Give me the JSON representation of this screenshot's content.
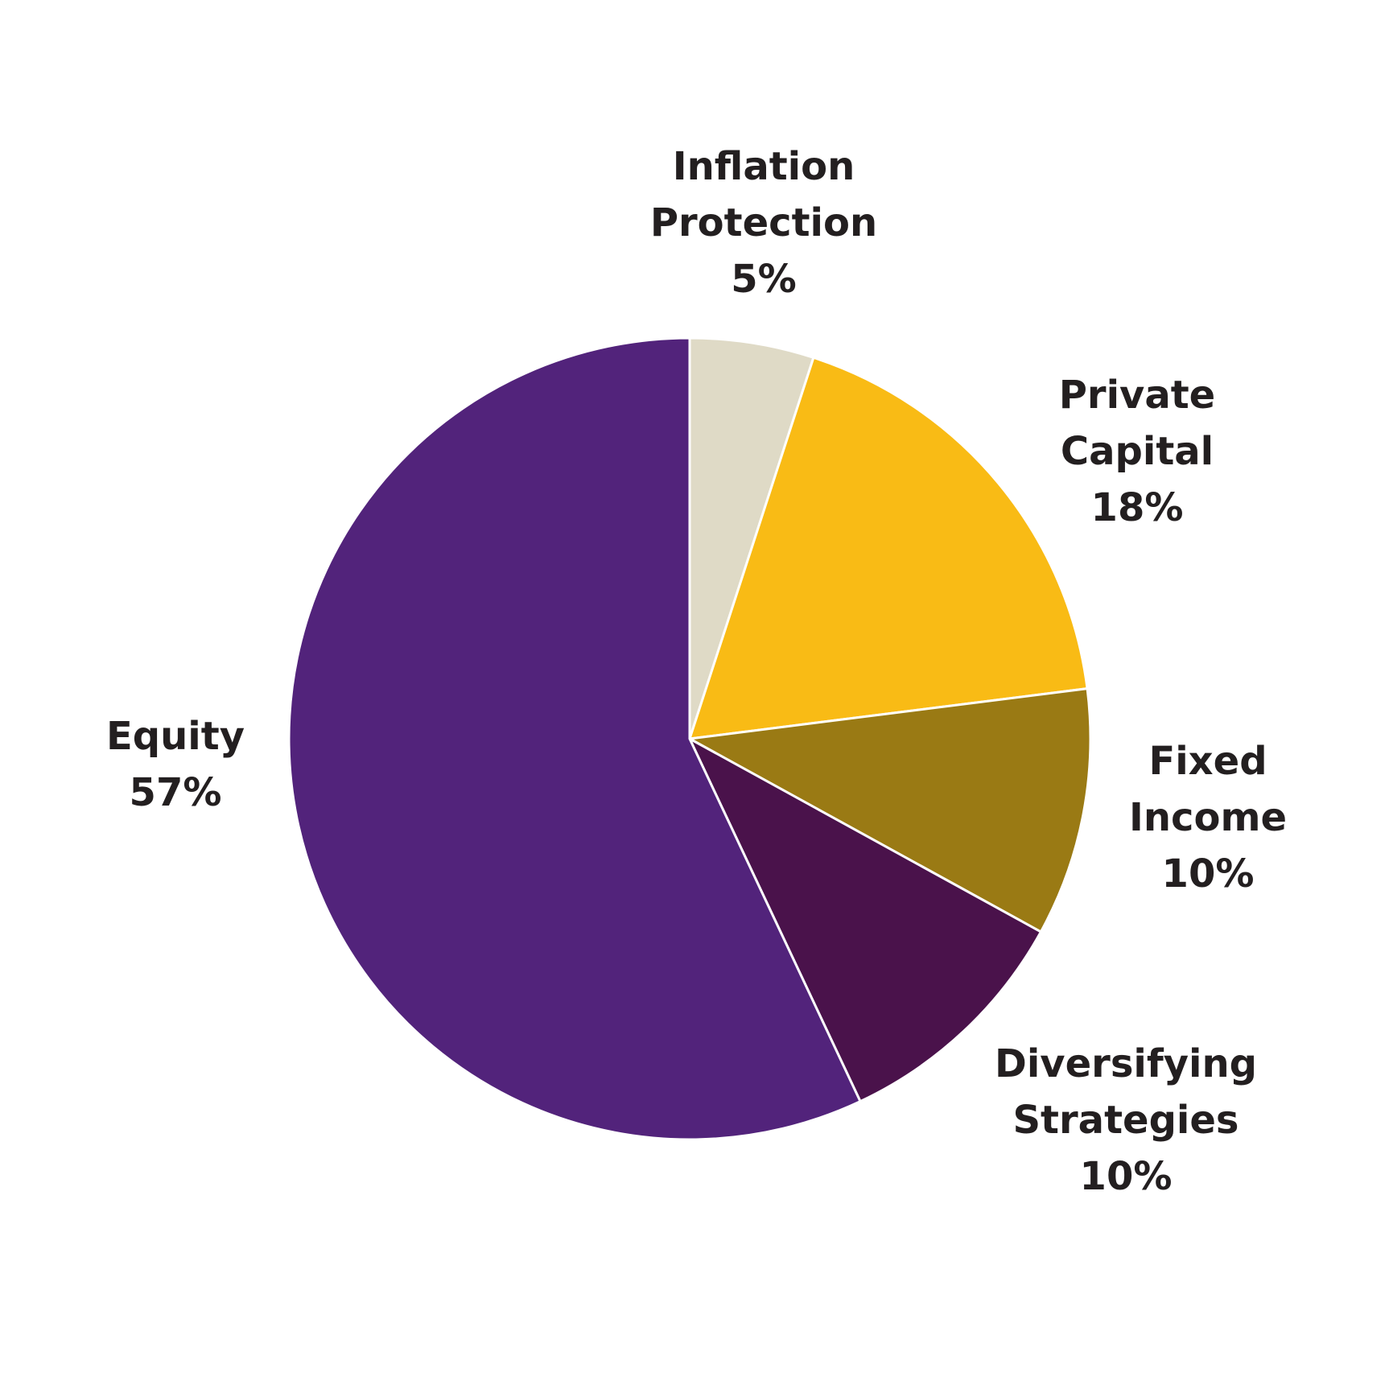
{
  "chart_data": {
    "type": "pie",
    "categories": [
      "Inflation Protection",
      "Private Capital",
      "Fixed Income",
      "Diversifying Strategies",
      "Equity"
    ],
    "values": [
      5,
      18,
      10,
      10,
      57
    ],
    "value_labels": [
      "5%",
      "18%",
      "10%",
      "10%",
      "57%"
    ],
    "colors": [
      "#dfdac6",
      "#f9bb15",
      "#9a7a14",
      "#4a124b",
      "#52237b"
    ]
  }
}
